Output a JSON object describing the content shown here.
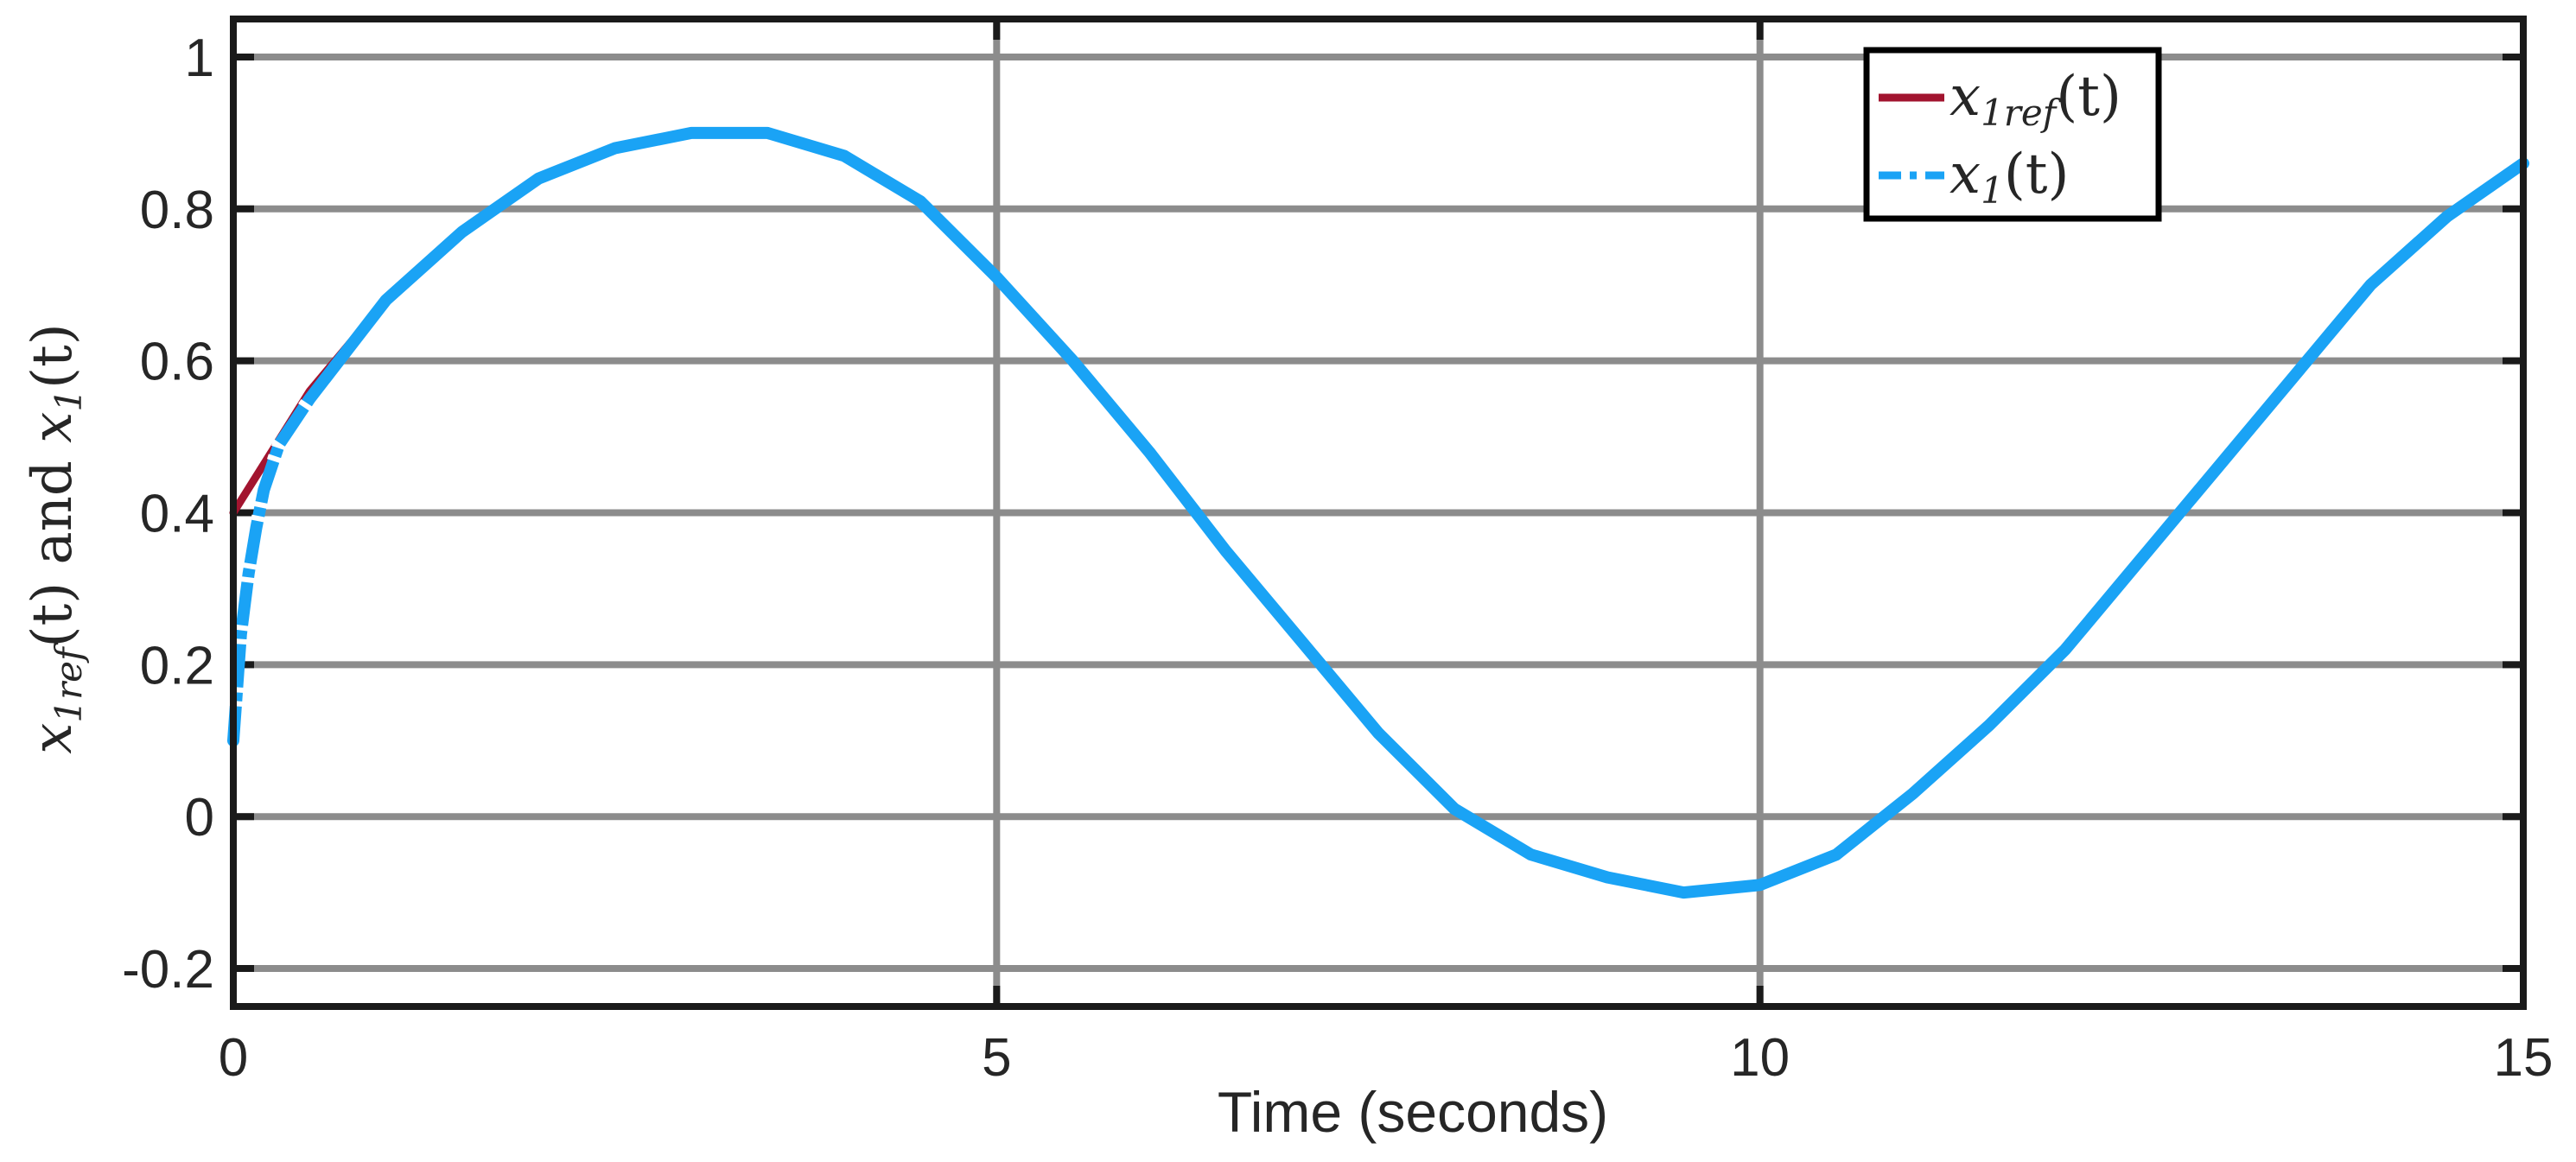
{
  "chart_data": {
    "type": "line",
    "xlabel": "Time (seconds)",
    "ylabel_parts": {
      "a": "x",
      "a_sub": "1ref",
      "a_arg": "(t)",
      "and": " and ",
      "b": "x",
      "b_sub": "1",
      "b_arg": "(t)"
    },
    "xlim": [
      0,
      15
    ],
    "ylim": [
      -0.25,
      1.05
    ],
    "xticks": [
      0,
      5,
      10,
      15
    ],
    "xtick_labels": [
      "0",
      "5",
      "10",
      "15"
    ],
    "yticks": [
      -0.2,
      0,
      0.2,
      0.4,
      0.6,
      0.8,
      1
    ],
    "ytick_labels": [
      "-0.2",
      "0",
      "0.2",
      "0.4",
      "0.6",
      "0.8",
      "1"
    ],
    "grid": true,
    "legend_position": "top-right",
    "series": [
      {
        "name": "x1ref(t)",
        "legend": {
          "base": "x",
          "sub": "1ref",
          "arg": "(t)"
        },
        "color": "#a2142f",
        "style": "solid",
        "x": [
          0,
          0.5,
          1,
          1.5,
          2,
          2.5,
          3,
          3.5,
          4,
          4.5,
          5,
          5.5,
          6,
          6.5,
          7,
          7.5,
          8,
          8.5,
          9,
          9.5,
          10,
          10.5,
          11,
          11.5,
          12,
          12.5,
          13,
          13.5,
          14,
          14.5,
          15
        ],
        "y": [
          0.4,
          0.56,
          0.68,
          0.77,
          0.84,
          0.88,
          0.9,
          0.9,
          0.87,
          0.81,
          0.71,
          0.6,
          0.48,
          0.35,
          0.23,
          0.11,
          0.01,
          -0.05,
          -0.08,
          -0.1,
          -0.09,
          -0.05,
          0.03,
          0.12,
          0.22,
          0.34,
          0.46,
          0.58,
          0.7,
          0.79,
          0.86
        ]
      },
      {
        "name": "x1(t)",
        "legend": {
          "base": "x",
          "sub": "1",
          "arg": "(t)"
        },
        "color": "#1aa3f5",
        "style": "dashdot",
        "x": [
          0,
          0.05,
          0.1,
          0.15,
          0.2,
          0.3,
          0.4,
          0.5,
          1,
          1.5,
          2,
          2.5,
          3,
          3.5,
          4,
          4.5,
          5,
          5.5,
          6,
          6.5,
          7,
          7.5,
          8,
          8.5,
          9,
          9.5,
          10,
          10.5,
          11,
          11.5,
          12,
          12.5,
          13,
          13.5,
          14,
          14.5,
          15
        ],
        "y": [
          0.1,
          0.24,
          0.32,
          0.38,
          0.43,
          0.49,
          0.52,
          0.55,
          0.68,
          0.77,
          0.84,
          0.88,
          0.9,
          0.9,
          0.87,
          0.81,
          0.71,
          0.6,
          0.48,
          0.35,
          0.23,
          0.11,
          0.01,
          -0.05,
          -0.08,
          -0.1,
          -0.09,
          -0.05,
          0.03,
          0.12,
          0.22,
          0.34,
          0.46,
          0.58,
          0.7,
          0.79,
          0.86
        ]
      }
    ]
  }
}
